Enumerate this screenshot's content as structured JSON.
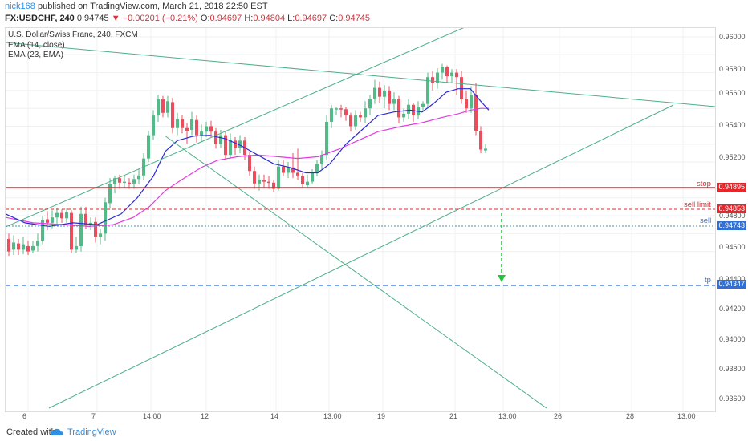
{
  "header": {
    "user": "nick168",
    "published": "published on TradingView.com, March 21, 2018 22:50 EST",
    "symbol": "FX:USDCHF, 240",
    "last": "0.94745",
    "change": "−0.00201 (−0.21%)",
    "o_label": "O:",
    "o": "0.94697",
    "h_label": "H:",
    "h": "0.94804",
    "l_label": "L:",
    "l": "0.94697",
    "c_label": "C:",
    "c": "0.94745"
  },
  "legend": {
    "title": "U.S. Dollar/Swiss Franc, 240, FXCM",
    "ema1": "EMA (14, close)",
    "ema2": "EMA (23, EMA)"
  },
  "yaxis": {
    "ticks": [
      "0.96000",
      "0.95800",
      "0.95600",
      "0.95400",
      "0.95200",
      "0.94800",
      "0.94600",
      "0.94400",
      "0.94200",
      "0.94000",
      "0.93800",
      "0.93600"
    ]
  },
  "xaxis": {
    "ticks": [
      "6",
      "7",
      "14:00",
      "12",
      "14",
      "13:00",
      "19",
      "21",
      "13:00",
      "26",
      "28",
      "13:00"
    ]
  },
  "levels": {
    "stop_label": "stop",
    "stop_price": "0.94895",
    "sell_limit_label": "sell limit",
    "sell_limit_price": "0.94853",
    "sell_label": "sell",
    "sell_price": "0.94743",
    "tp_label": "tp",
    "tp_price": "0.94347"
  },
  "footer": {
    "created": "Created with",
    "brand": "TradingView"
  },
  "colors": {
    "up": "#53b987",
    "down": "#eb4d5c",
    "ema_fast": "#2b2bd6",
    "ema_slow": "#e23be2",
    "trend": "#4caf87",
    "stop": "#e5262b",
    "sell_limit": "#e5262b",
    "sell": "#4a8fa0",
    "tp": "#2f6fd6",
    "arrow": "#21c53a"
  }
}
